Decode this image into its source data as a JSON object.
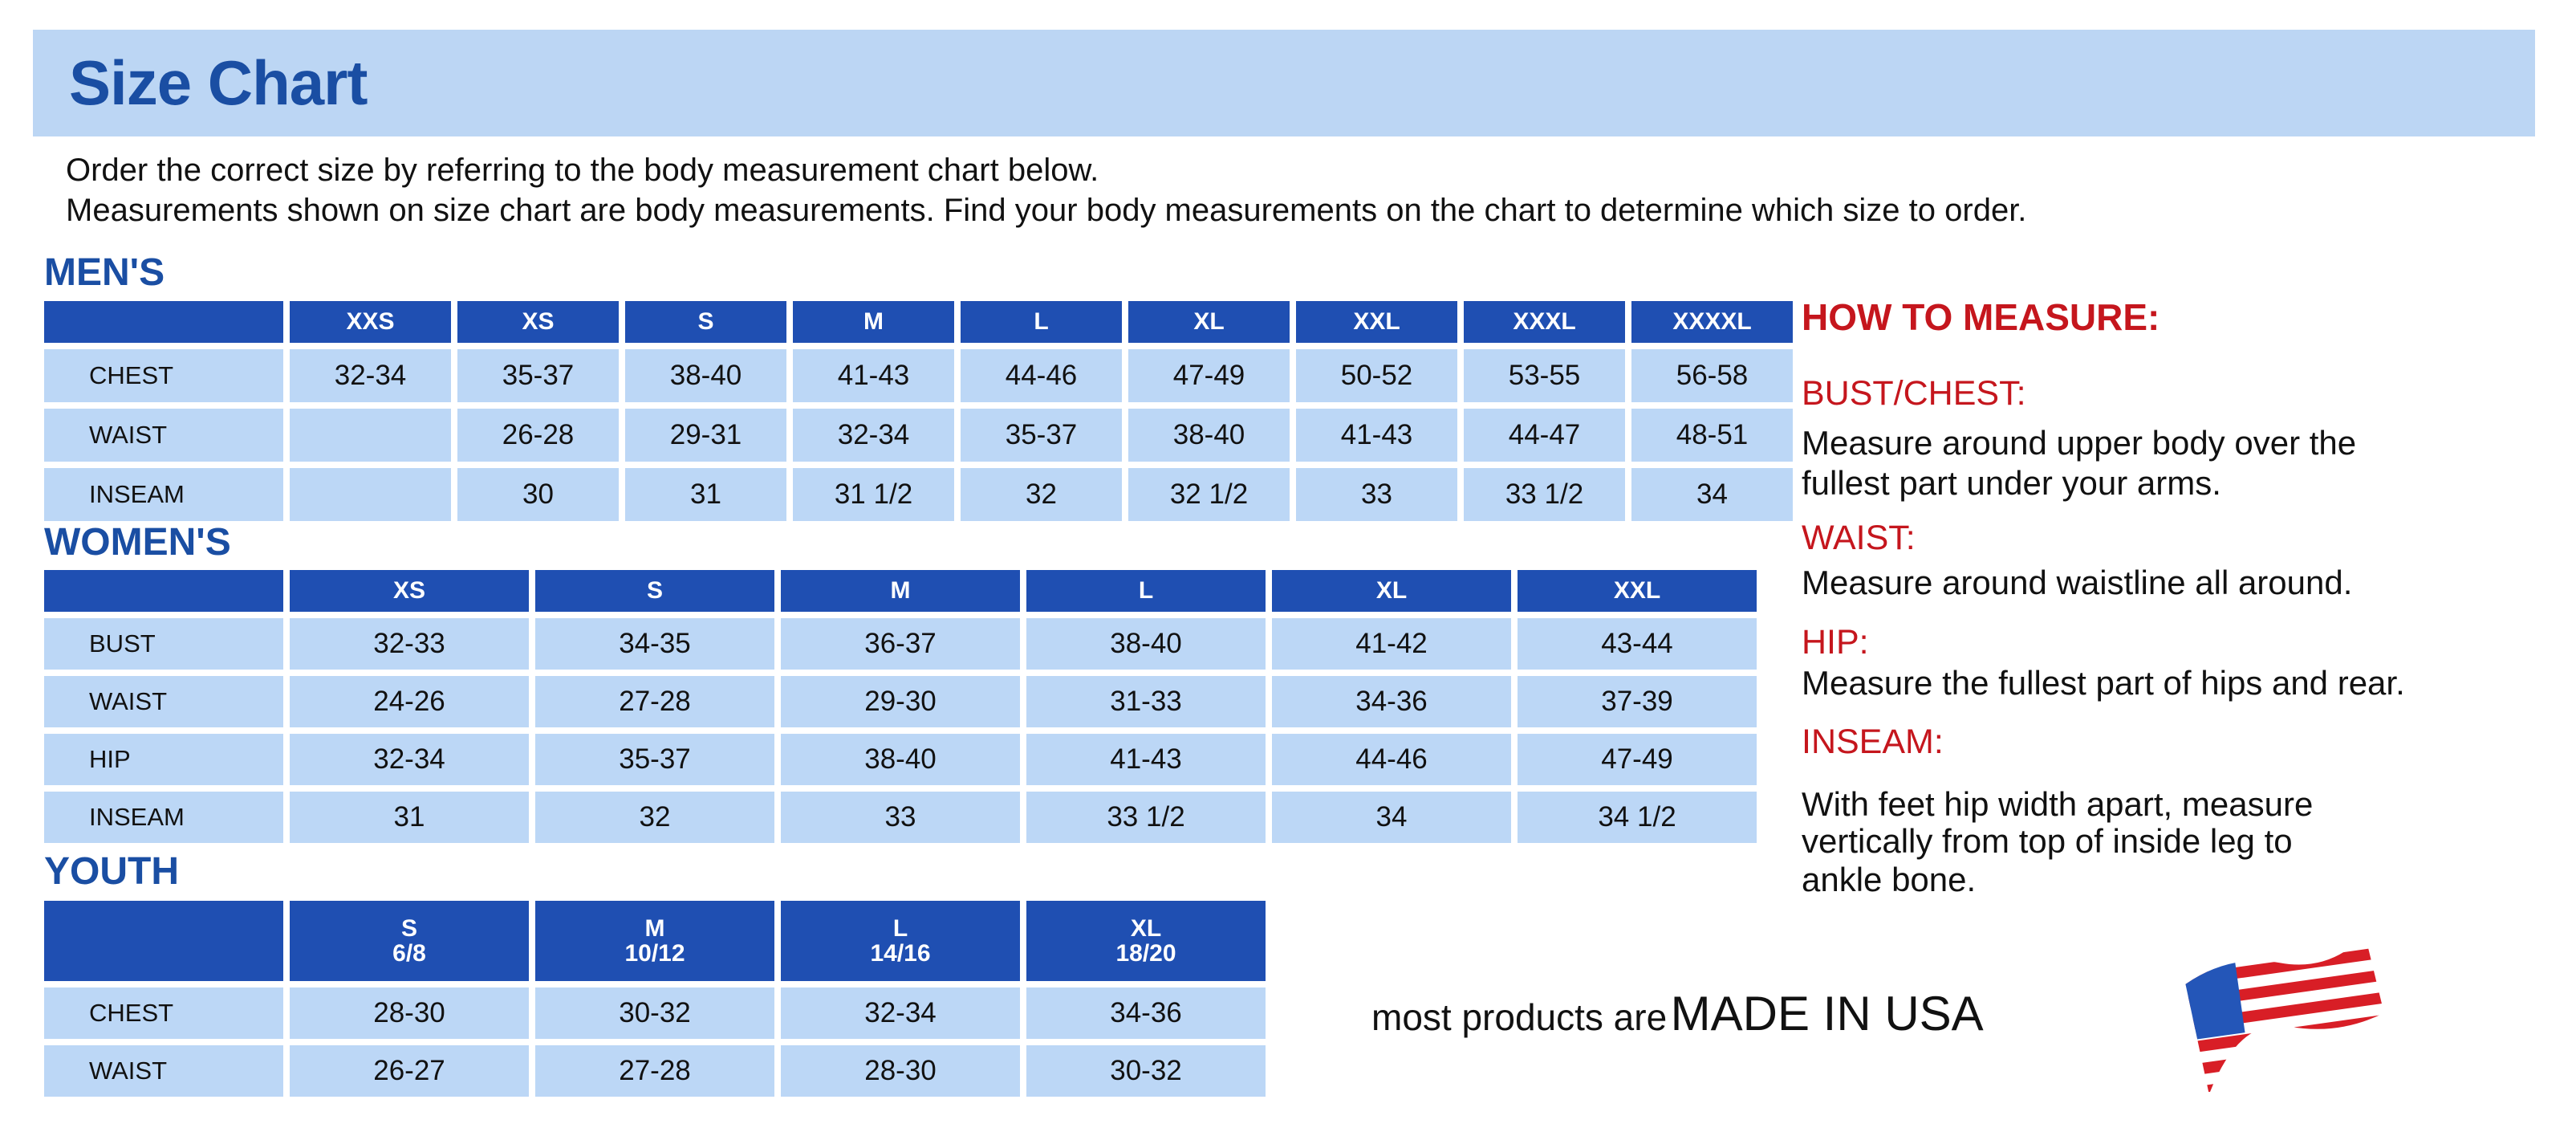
{
  "title": "Size Chart",
  "intro": [
    "Order the correct size by referring to the body measurement chart below.",
    "Measurements shown on size chart are body measurements.  Find your body measurements on the chart to determine which size to order."
  ],
  "colors": {
    "header_blue": "#1f4fb2",
    "cell_blue": "#bcd7f6",
    "title_blue": "#1a4ea3",
    "accent_red": "#c5161d"
  },
  "tables": [
    {
      "label": "MEN'S",
      "headers": [
        "XXS",
        "XS",
        "S",
        "M",
        "L",
        "XL",
        "XXL",
        "XXXL",
        "XXXXL"
      ],
      "rows": [
        {
          "name": "CHEST",
          "values": [
            "32-34",
            "35-37",
            "38-40",
            "41-43",
            "44-46",
            "47-49",
            "50-52",
            "53-55",
            "56-58"
          ]
        },
        {
          "name": "WAIST",
          "values": [
            "",
            "26-28",
            "29-31",
            "32-34",
            "35-37",
            "38-40",
            "41-43",
            "44-47",
            "48-51"
          ]
        },
        {
          "name": "INSEAM",
          "values": [
            "",
            "30",
            "31",
            "31 1/2",
            "32",
            "32 1/2",
            "33",
            "33 1/2",
            "34"
          ]
        }
      ]
    },
    {
      "label": "WOMEN'S",
      "headers": [
        "XS",
        "S",
        "M",
        "L",
        "XL",
        "XXL"
      ],
      "rows": [
        {
          "name": "BUST",
          "values": [
            "32-33",
            "34-35",
            "36-37",
            "38-40",
            "41-42",
            "43-44"
          ]
        },
        {
          "name": "WAIST",
          "values": [
            "24-26",
            "27-28",
            "29-30",
            "31-33",
            "34-36",
            "37-39"
          ]
        },
        {
          "name": "HIP",
          "values": [
            "32-34",
            "35-37",
            "38-40",
            "41-43",
            "44-46",
            "47-49"
          ]
        },
        {
          "name": "INSEAM",
          "values": [
            "31",
            "32",
            "33",
            "33 1/2",
            "34",
            "34 1/2"
          ]
        }
      ]
    },
    {
      "label": "YOUTH",
      "headers": [
        "S\n6/8",
        "M\n10/12",
        "L\n14/16",
        "XL\n18/20"
      ],
      "rows": [
        {
          "name": "CHEST",
          "values": [
            "28-30",
            "30-32",
            "32-34",
            "34-36"
          ]
        },
        {
          "name": "WAIST",
          "values": [
            "26-27",
            "27-28",
            "28-30",
            "30-32"
          ]
        }
      ]
    }
  ],
  "how_to_measure": {
    "heading": "HOW TO MEASURE:",
    "items": [
      {
        "label": "BUST/CHEST:",
        "lines": [
          "Measure around upper body over the",
          "fullest part under your arms."
        ]
      },
      {
        "label": "WAIST:",
        "lines": [
          "Measure around waistline all around."
        ]
      },
      {
        "label": "HIP:",
        "lines": [
          "Measure the fullest part of hips and rear."
        ]
      },
      {
        "label": "INSEAM:",
        "lines": [
          "With feet hip width apart, measure",
          "vertically from top of inside leg to",
          "ankle bone."
        ]
      }
    ]
  },
  "made_in": {
    "prefix": "most products are",
    "emphasis": "MADE IN USA",
    "icon": "us-flag-icon"
  }
}
